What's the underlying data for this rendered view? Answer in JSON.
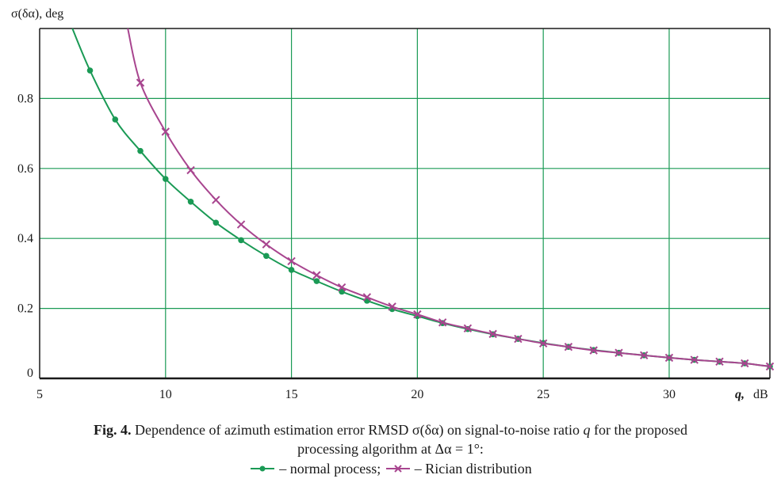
{
  "chart_data": {
    "type": "line",
    "y_axis_title": "σ(δα), deg",
    "x_axis_title_var": "q,",
    "x_axis_title_unit": "dB",
    "xlim": [
      5,
      34
    ],
    "ylim": [
      0,
      1.0
    ],
    "x_ticks": [
      5,
      10,
      15,
      20,
      25,
      30
    ],
    "y_ticks": [
      0,
      0.2,
      0.4,
      0.6,
      0.8
    ],
    "x_tick_labels": [
      "5",
      "10",
      "15",
      "20",
      "25",
      "30"
    ],
    "y_tick_labels": [
      "0",
      "0.2",
      "0.4",
      "0.6",
      "0.8"
    ],
    "grid": true,
    "series": [
      {
        "name": "normal process",
        "color": "#1a9a55",
        "marker": "circle",
        "x": [
          7,
          8,
          9,
          10,
          11,
          12,
          13,
          14,
          15,
          16,
          17,
          18,
          19,
          20,
          21,
          22,
          23,
          24,
          25,
          26,
          27,
          28,
          29,
          30,
          31,
          32,
          33,
          34
        ],
        "y": [
          0.88,
          0.74,
          0.65,
          0.57,
          0.505,
          0.445,
          0.395,
          0.35,
          0.31,
          0.278,
          0.248,
          0.222,
          0.198,
          0.178,
          0.158,
          0.141,
          0.126,
          0.113,
          0.101,
          0.09,
          0.081,
          0.073,
          0.066,
          0.059,
          0.053,
          0.048,
          0.043,
          0.034
        ]
      },
      {
        "name": "Rician distribution",
        "color": "#a8458f",
        "marker": "x",
        "x": [
          9,
          10,
          11,
          12,
          13,
          14,
          15,
          16,
          17,
          18,
          19,
          20,
          21,
          22,
          23,
          24,
          25,
          26,
          27,
          28,
          29,
          30,
          31,
          32,
          33,
          34
        ],
        "y": [
          0.845,
          0.705,
          0.595,
          0.51,
          0.44,
          0.383,
          0.335,
          0.295,
          0.26,
          0.232,
          0.205,
          0.183,
          0.16,
          0.143,
          0.127,
          0.113,
          0.1,
          0.09,
          0.08,
          0.073,
          0.066,
          0.059,
          0.053,
          0.048,
          0.043,
          0.034
        ]
      }
    ],
    "normal_curve_start": [
      6.3,
      1.0
    ],
    "rician_curve_start": [
      8.5,
      1.0
    ]
  },
  "caption": {
    "fig_label": "Fig. 4.",
    "line1_text": "Dependence of azimuth estimation error RMSD σ(δα) on signal-to-noise ratio",
    "line1_var": "q",
    "line1_tail": "for the proposed",
    "line2": "processing algorithm at Δα = 1°:",
    "legend_normal": "– normal process;",
    "legend_rician": "– Rician distribution"
  },
  "colors": {
    "grid": "#1a9a55",
    "normal": "#1a9a55",
    "rician": "#a8458f",
    "axis": "#1a1a1a"
  }
}
